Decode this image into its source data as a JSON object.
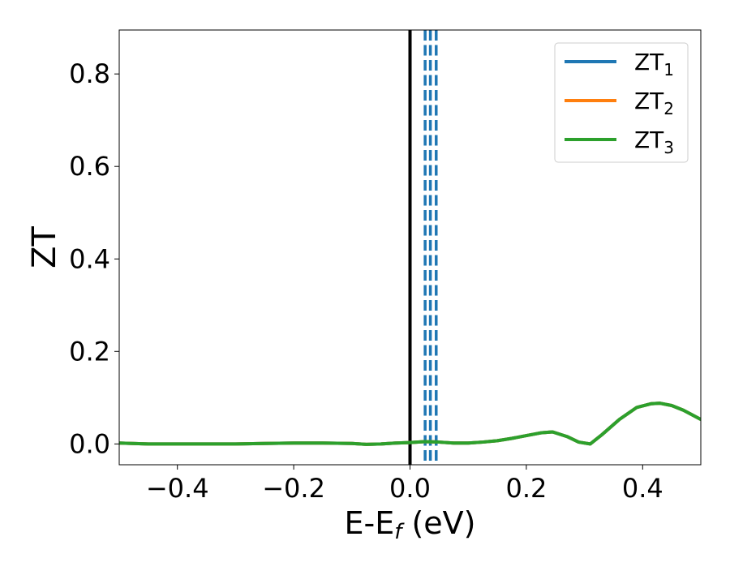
{
  "chart_data": {
    "type": "line",
    "xlabel_main": "E-E",
    "xlabel_sub": "f",
    "xlabel_unit": " (eV)",
    "ylabel": "ZT",
    "xlim": [
      -0.5,
      0.5
    ],
    "ylim": [
      -0.045,
      0.895
    ],
    "xticks": [
      -0.4,
      -0.2,
      0.0,
      0.2,
      0.4
    ],
    "xtick_labels": [
      "−0.4",
      "−0.2",
      "0.0",
      "0.2",
      "0.4"
    ],
    "yticks": [
      0.0,
      0.2,
      0.4,
      0.6,
      0.8
    ],
    "ytick_labels": [
      "0.0",
      "0.2",
      "0.4",
      "0.6",
      "0.8"
    ],
    "legend_position": "top-right",
    "series": [
      {
        "name_main": "ZT",
        "name_sub": "1",
        "color": "#1f77b4",
        "x": [
          -0.5,
          -0.45,
          -0.4,
          -0.35,
          -0.3,
          -0.25,
          -0.2,
          -0.15,
          -0.1,
          -0.075,
          -0.05,
          -0.025,
          0.0,
          0.025,
          0.05,
          0.075,
          0.1,
          0.125,
          0.15,
          0.175,
          0.2,
          0.225,
          0.245,
          0.27,
          0.29,
          0.31,
          0.33,
          0.36,
          0.39,
          0.415,
          0.43,
          0.45,
          0.47,
          0.5
        ],
        "y": [
          0.002,
          0.0,
          0.0,
          0.0,
          0.0,
          0.001,
          0.002,
          0.002,
          0.001,
          -0.001,
          0.0,
          0.002,
          0.003,
          0.005,
          0.004,
          0.002,
          0.002,
          0.004,
          0.007,
          0.012,
          0.018,
          0.024,
          0.026,
          0.016,
          0.004,
          0.0,
          0.02,
          0.053,
          0.079,
          0.087,
          0.088,
          0.083,
          0.073,
          0.053
        ]
      },
      {
        "name_main": "ZT",
        "name_sub": "2",
        "color": "#ff7f0e",
        "x": [
          -0.5,
          -0.45,
          -0.4,
          -0.35,
          -0.3,
          -0.25,
          -0.2,
          -0.15,
          -0.1,
          -0.075,
          -0.05,
          -0.025,
          0.0,
          0.025,
          0.05,
          0.075,
          0.1,
          0.125,
          0.15,
          0.175,
          0.2,
          0.225,
          0.245,
          0.27,
          0.29,
          0.31,
          0.33,
          0.36,
          0.39,
          0.415,
          0.43,
          0.45,
          0.47,
          0.5
        ],
        "y": [
          0.002,
          0.0,
          0.0,
          0.0,
          0.0,
          0.001,
          0.002,
          0.002,
          0.001,
          -0.001,
          0.0,
          0.002,
          0.003,
          0.005,
          0.004,
          0.002,
          0.002,
          0.004,
          0.007,
          0.012,
          0.018,
          0.024,
          0.026,
          0.016,
          0.004,
          0.0,
          0.02,
          0.053,
          0.079,
          0.087,
          0.088,
          0.083,
          0.073,
          0.053
        ]
      },
      {
        "name_main": "ZT",
        "name_sub": "3",
        "color": "#2ca02c",
        "x": [
          -0.5,
          -0.45,
          -0.4,
          -0.35,
          -0.3,
          -0.25,
          -0.2,
          -0.15,
          -0.1,
          -0.075,
          -0.05,
          -0.025,
          0.0,
          0.025,
          0.05,
          0.075,
          0.1,
          0.125,
          0.15,
          0.175,
          0.2,
          0.225,
          0.245,
          0.27,
          0.29,
          0.31,
          0.33,
          0.36,
          0.39,
          0.415,
          0.43,
          0.45,
          0.47,
          0.5
        ],
        "y": [
          0.002,
          0.0,
          0.0,
          0.0,
          0.0,
          0.001,
          0.002,
          0.002,
          0.001,
          -0.001,
          0.0,
          0.002,
          0.003,
          0.005,
          0.004,
          0.002,
          0.002,
          0.004,
          0.007,
          0.012,
          0.018,
          0.024,
          0.026,
          0.016,
          0.004,
          0.0,
          0.02,
          0.053,
          0.079,
          0.087,
          0.088,
          0.083,
          0.073,
          0.053
        ]
      }
    ],
    "vertical_lines": [
      {
        "x": 0.0,
        "color": "#000000",
        "style": "solid"
      },
      {
        "x": 0.026,
        "color": "#1f77b4",
        "style": "dashed"
      },
      {
        "x": 0.035,
        "color": "#1f77b4",
        "style": "dashed"
      },
      {
        "x": 0.045,
        "color": "#1f77b4",
        "style": "dashed"
      }
    ]
  }
}
